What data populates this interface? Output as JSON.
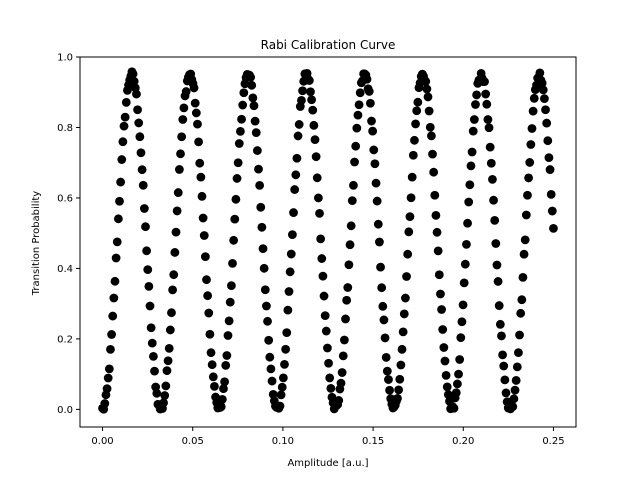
{
  "chart_data": {
    "type": "scatter",
    "title": "Rabi Calibration Curve",
    "xlabel": "Amplitude [a.u.]",
    "ylabel": "Transition Probability",
    "xlim": [
      -0.0125,
      0.2625
    ],
    "ylim": [
      -0.05,
      1.0
    ],
    "xticks": [
      0.0,
      0.05,
      0.1,
      0.15,
      0.2,
      0.25
    ],
    "xtick_labels": [
      "0.00",
      "0.05",
      "0.10",
      "0.15",
      "0.20",
      "0.25"
    ],
    "yticks": [
      0.0,
      0.2,
      0.4,
      0.6,
      0.8,
      1.0
    ],
    "ytick_labels": [
      "0.0",
      "0.2",
      "0.4",
      "0.6",
      "0.8",
      "1.0"
    ],
    "grid": false,
    "marker_color": "#000000",
    "x_range": [
      0.0,
      0.25
    ],
    "n_points": 400,
    "oscillation_period": 0.0323,
    "phase_offset": 0.0,
    "amplitude": 0.95,
    "offset": 0.0,
    "model": "P(x) = 0.95 * sin^2(pi * x / 0.0323) + jitter"
  }
}
